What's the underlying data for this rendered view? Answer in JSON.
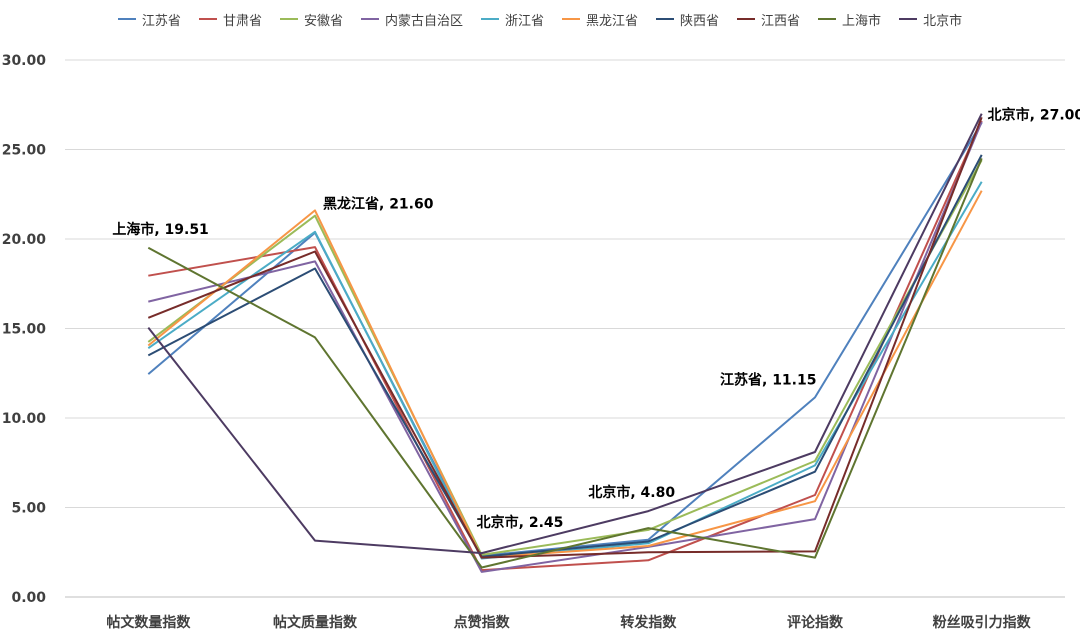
{
  "chart_data": {
    "type": "line",
    "categories": [
      "帖文数量指数",
      "帖文质量指数",
      "点赞指数",
      "转发指数",
      "评论指数",
      "粉丝吸引力指数"
    ],
    "ylim": [
      0,
      30
    ],
    "yticks": [
      "0.00",
      "5.00",
      "10.00",
      "15.00",
      "20.00",
      "25.00",
      "30.00"
    ],
    "grid": true,
    "legend_position": "top",
    "series": [
      {
        "name": "江苏省",
        "color": "#4f81bd",
        "values": [
          12.45,
          20.35,
          2.3,
          3.2,
          11.15,
          26.5
        ]
      },
      {
        "name": "甘肃省",
        "color": "#c0504d",
        "values": [
          17.95,
          19.55,
          1.5,
          2.05,
          5.7,
          26.6
        ]
      },
      {
        "name": "安徽省",
        "color": "#9bbb59",
        "values": [
          14.25,
          21.3,
          2.35,
          3.75,
          7.6,
          24.4
        ]
      },
      {
        "name": "内蒙古自治区",
        "color": "#8064a2",
        "values": [
          16.5,
          18.75,
          1.4,
          2.8,
          4.35,
          26.55
        ]
      },
      {
        "name": "浙江省",
        "color": "#4bacc6",
        "values": [
          13.9,
          20.4,
          2.15,
          3.0,
          7.35,
          23.2
        ]
      },
      {
        "name": "黑龙江省",
        "color": "#f79646",
        "values": [
          14.05,
          21.6,
          2.2,
          2.85,
          5.35,
          22.7
        ]
      },
      {
        "name": "陕西省",
        "color": "#2c4d75",
        "values": [
          13.5,
          18.35,
          2.25,
          3.1,
          7.0,
          24.7
        ]
      },
      {
        "name": "江西省",
        "color": "#772c2a",
        "values": [
          15.6,
          19.3,
          2.2,
          2.5,
          2.55,
          26.8
        ]
      },
      {
        "name": "上海市",
        "color": "#5f7530",
        "values": [
          19.51,
          14.5,
          1.65,
          3.85,
          2.2,
          24.5
        ]
      },
      {
        "name": "北京市",
        "color": "#4d3b62",
        "values": [
          15.05,
          3.15,
          2.45,
          4.8,
          8.1,
          27.0
        ]
      }
    ],
    "annotations": [
      {
        "text": "上海市, 19.51",
        "series": "上海市",
        "category": "帖文数量指数"
      },
      {
        "text": "黑龙江省, 21.60",
        "series": "黑龙江省",
        "category": "帖文质量指数"
      },
      {
        "text": "北京市, 2.45",
        "series": "北京市",
        "category": "点赞指数"
      },
      {
        "text": "北京市, 4.80",
        "series": "北京市",
        "category": "转发指数"
      },
      {
        "text": "江苏省, 11.15",
        "series": "江苏省",
        "category": "评论指数"
      },
      {
        "text": "北京市, 27.00",
        "series": "北京市",
        "category": "粉丝吸引力指数"
      }
    ]
  }
}
